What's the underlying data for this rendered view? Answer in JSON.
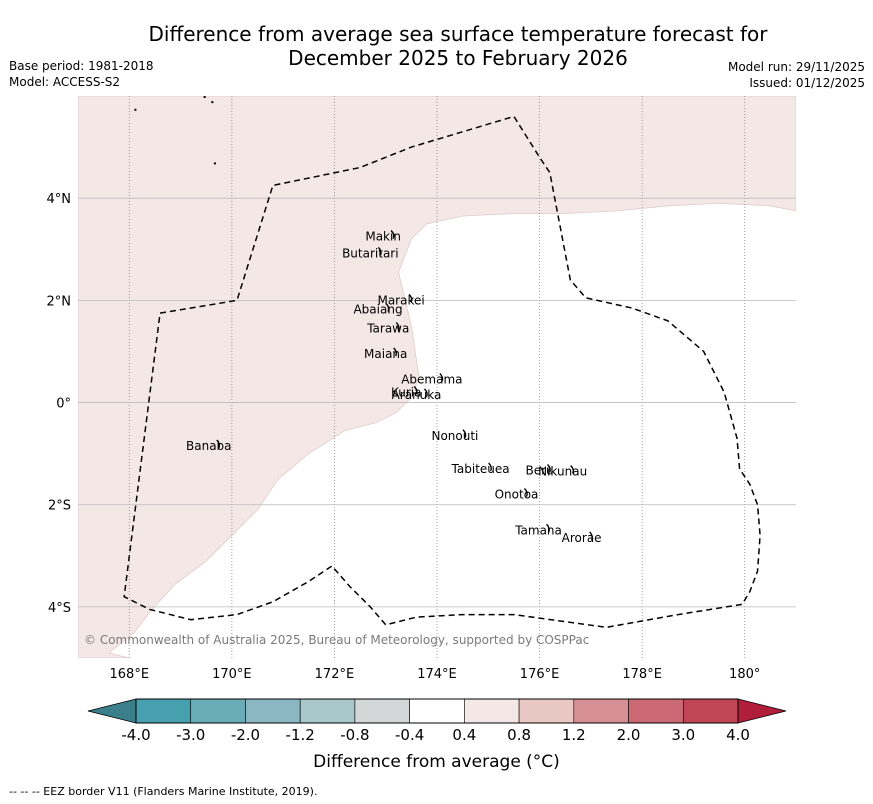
{
  "title": {
    "line1": "Difference from average sea surface temperature forecast for",
    "line2": "December 2025 to February 2026"
  },
  "meta_left": {
    "base_period": "Base period: 1981-2018",
    "model": "Model: ACCESS-S2"
  },
  "meta_right": {
    "model_run": "Model run: 29/11/2025",
    "issued": "Issued: 01/12/2025"
  },
  "map": {
    "extent": {
      "lon": [
        167.0,
        181.0
      ],
      "lat": [
        -5.0,
        6.0
      ]
    },
    "lon_ticks": [
      {
        "value": 168,
        "label": "168°E"
      },
      {
        "value": 170,
        "label": "170°E"
      },
      {
        "value": 172,
        "label": "172°E"
      },
      {
        "value": 174,
        "label": "174°E"
      },
      {
        "value": 176,
        "label": "176°E"
      },
      {
        "value": 178,
        "label": "178°E"
      },
      {
        "value": 180,
        "label": "180°"
      }
    ],
    "lat_ticks": [
      {
        "value": 4,
        "label": "4°N"
      },
      {
        "value": 2,
        "label": "2°N"
      },
      {
        "value": 0,
        "label": "0°"
      },
      {
        "value": -2,
        "label": "2°S"
      },
      {
        "value": -4,
        "label": "4°S"
      }
    ],
    "anomaly_region": {
      "category": "0.4 to 0.8",
      "color": "#f4e8e7",
      "outline": [
        [
          167,
          6
        ],
        [
          181,
          6
        ],
        [
          181,
          3.75
        ],
        [
          180.5,
          3.85
        ],
        [
          179.5,
          3.9
        ],
        [
          178.5,
          3.85
        ],
        [
          177.5,
          3.75
        ],
        [
          176.5,
          3.7
        ],
        [
          175.5,
          3.7
        ],
        [
          174.5,
          3.65
        ],
        [
          173.8,
          3.5
        ],
        [
          173.5,
          3.2
        ],
        [
          173.25,
          2.55
        ],
        [
          173.5,
          1.5
        ],
        [
          173.65,
          0.5
        ],
        [
          173.5,
          0.1
        ],
        [
          173.2,
          -0.2
        ],
        [
          172.8,
          -0.4
        ],
        [
          172.2,
          -0.55
        ],
        [
          171.5,
          -1.0
        ],
        [
          170.9,
          -1.5
        ],
        [
          170.5,
          -2.1
        ],
        [
          169.5,
          -3.1
        ],
        [
          168.9,
          -3.55
        ],
        [
          168.4,
          -4.1
        ],
        [
          168.1,
          -4.5
        ],
        [
          167.6,
          -4.9
        ],
        [
          168.0,
          -5.0
        ],
        [
          167,
          -5.0
        ]
      ]
    },
    "background_category": "-0.4 to 0.4",
    "eez_border": [
      [
        168.6,
        1.75
      ],
      [
        170.1,
        2.0
      ],
      [
        170.8,
        4.25
      ],
      [
        172.5,
        4.6
      ],
      [
        173.5,
        5.0
      ],
      [
        175.5,
        5.6
      ],
      [
        176.0,
        4.8
      ],
      [
        176.2,
        4.5
      ],
      [
        176.6,
        2.4
      ],
      [
        176.9,
        2.05
      ],
      [
        177.8,
        1.85
      ],
      [
        178.5,
        1.6
      ],
      [
        179.2,
        1.0
      ],
      [
        179.6,
        0.2
      ],
      [
        179.85,
        -0.7
      ],
      [
        179.9,
        -1.3
      ],
      [
        180.1,
        -1.6
      ],
      [
        180.25,
        -2.0
      ],
      [
        180.3,
        -2.6
      ],
      [
        180.25,
        -3.3
      ],
      [
        180.1,
        -3.7
      ],
      [
        179.95,
        -3.95
      ],
      [
        178.7,
        -4.15
      ],
      [
        177.3,
        -4.4
      ],
      [
        175.5,
        -4.15
      ],
      [
        174.5,
        -4.15
      ],
      [
        173.6,
        -4.2
      ],
      [
        173.0,
        -4.35
      ],
      [
        172.7,
        -4.0
      ],
      [
        172.3,
        -3.6
      ],
      [
        171.95,
        -3.2
      ],
      [
        171.5,
        -3.5
      ],
      [
        170.8,
        -3.9
      ],
      [
        170.1,
        -4.15
      ],
      [
        169.2,
        -4.25
      ],
      [
        168.4,
        -4.05
      ],
      [
        167.9,
        -3.8
      ],
      [
        168.6,
        1.75
      ]
    ],
    "islands": [
      {
        "name": "Makin",
        "lat": 3.25,
        "lon": 172.95
      },
      {
        "name": "Butaritari",
        "lat": 2.92,
        "lon": 172.7
      },
      {
        "name": "Marakei",
        "lat": 2.0,
        "lon": 173.3
      },
      {
        "name": "Abaiang",
        "lat": 1.82,
        "lon": 172.85
      },
      {
        "name": "Tarawa",
        "lat": 1.45,
        "lon": 173.05
      },
      {
        "name": "Maiana",
        "lat": 0.95,
        "lon": 173.0
      },
      {
        "name": "Abemama",
        "lat": 0.45,
        "lon": 173.9
      },
      {
        "name": "Kuria",
        "lat": 0.2,
        "lon": 173.4
      },
      {
        "name": "Aranuka",
        "lat": 0.15,
        "lon": 173.6
      },
      {
        "name": "Banaba",
        "lat": -0.85,
        "lon": 169.55
      },
      {
        "name": "Nonouti",
        "lat": -0.65,
        "lon": 174.35
      },
      {
        "name": "Tabiteuea",
        "lat": -1.3,
        "lon": 174.85
      },
      {
        "name": "Beru",
        "lat": -1.33,
        "lon": 176.0
      },
      {
        "name": "Nikunau",
        "lat": -1.35,
        "lon": 176.45
      },
      {
        "name": "Onotoa",
        "lat": -1.8,
        "lon": 175.55
      },
      {
        "name": "Tamana",
        "lat": -2.5,
        "lon": 175.98
      },
      {
        "name": "Arorae",
        "lat": -2.65,
        "lon": 176.82
      }
    ],
    "copyright": "© Commonwealth of Australia 2025, Bureau of Meteorology, supported by COSPPac"
  },
  "colorbar": {
    "label": "Difference from average (°C)",
    "ticks": [
      "-4.0",
      "-3.0",
      "-2.0",
      "-1.2",
      "-0.8",
      "-0.4",
      "0.4",
      "0.8",
      "1.2",
      "2.0",
      "3.0",
      "4.0"
    ],
    "under_color": "#3a7f8a",
    "over_color": "#b01e3c",
    "colors": [
      "#46a0ae",
      "#6aadb9",
      "#8ab7c2",
      "#a9c8cb",
      "#d4d7d7",
      "#ffffff",
      "#f4e8e7",
      "#e9c8c4",
      "#d78f96",
      "#cb6a74",
      "#c04655"
    ]
  },
  "footnote": "--  --  -- EEZ border V11 (Flanders Marine Institute, 2019)."
}
